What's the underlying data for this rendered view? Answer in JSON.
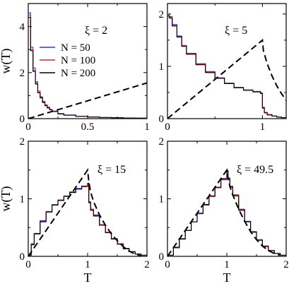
{
  "chart_data": [
    {
      "type": "line",
      "annotation": "ξ = 2",
      "xlabel": "",
      "ylabel": "w(T)",
      "xlim": [
        0,
        1
      ],
      "ylim": [
        0,
        5
      ],
      "xticks": [
        "0",
        "0.5",
        "1"
      ],
      "yticks": [
        "0",
        "2",
        "4"
      ],
      "legend": {
        "position": "middle-left",
        "entries": [
          "N = 50",
          "N = 100",
          "N = 200"
        ]
      },
      "series": [
        {
          "name": "N = 50",
          "style": "histogram",
          "color": "#3333dd",
          "x": [
            0.0,
            0.02,
            0.04,
            0.06,
            0.08,
            0.1,
            0.12,
            0.14,
            0.16,
            0.18,
            0.2,
            0.25,
            0.3,
            0.4,
            0.5,
            0.6,
            0.7,
            0.8,
            0.9,
            1.0
          ],
          "y": [
            4.6,
            3.1,
            2.2,
            1.6,
            1.2,
            0.95,
            0.75,
            0.6,
            0.5,
            0.4,
            0.33,
            0.22,
            0.16,
            0.1,
            0.07,
            0.05,
            0.04,
            0.03,
            0.02,
            0.02
          ]
        },
        {
          "name": "N = 100",
          "style": "histogram",
          "color": "#dd2222",
          "x": [
            0.0,
            0.02,
            0.04,
            0.06,
            0.08,
            0.1,
            0.12,
            0.14,
            0.16,
            0.18,
            0.2,
            0.25,
            0.3,
            0.4,
            0.5,
            0.6,
            0.7,
            0.8,
            0.9,
            1.0
          ],
          "y": [
            4.5,
            3.0,
            2.1,
            1.55,
            1.15,
            0.92,
            0.72,
            0.58,
            0.48,
            0.39,
            0.32,
            0.21,
            0.15,
            0.1,
            0.07,
            0.05,
            0.04,
            0.03,
            0.02,
            0.02
          ]
        },
        {
          "name": "N = 200",
          "style": "histogram",
          "color": "#000000",
          "x": [
            0.0,
            0.02,
            0.04,
            0.06,
            0.08,
            0.1,
            0.12,
            0.14,
            0.16,
            0.18,
            0.2,
            0.25,
            0.3,
            0.4,
            0.5,
            0.6,
            0.7,
            0.8,
            0.9,
            1.0
          ],
          "y": [
            4.4,
            2.95,
            2.05,
            1.5,
            1.12,
            0.9,
            0.7,
            0.56,
            0.46,
            0.38,
            0.31,
            0.2,
            0.15,
            0.1,
            0.07,
            0.05,
            0.04,
            0.03,
            0.02,
            0.02
          ]
        },
        {
          "name": "",
          "style": "dashed",
          "color": "#000000",
          "x": [
            0,
            1
          ],
          "y": [
            0,
            1.55
          ]
        }
      ]
    },
    {
      "type": "line",
      "annotation": "ξ = 5",
      "xlabel": "",
      "ylabel": "",
      "xlim": [
        0,
        1.25
      ],
      "ylim": [
        0,
        2.2
      ],
      "xticks": [
        "0",
        "1"
      ],
      "yticks": [
        "0",
        "1",
        "2"
      ],
      "series": [
        {
          "name": "N = 50",
          "style": "histogram",
          "color": "#3333dd",
          "x": [
            0.0,
            0.02,
            0.05,
            0.1,
            0.15,
            0.2,
            0.3,
            0.4,
            0.5,
            0.6,
            0.7,
            0.8,
            0.9,
            0.98,
            1.0,
            1.02,
            1.05,
            1.1,
            1.15,
            1.2,
            1.25
          ],
          "y": [
            2.0,
            1.95,
            1.8,
            1.58,
            1.4,
            1.25,
            1.05,
            0.9,
            0.78,
            0.68,
            0.6,
            0.55,
            0.52,
            0.49,
            0.22,
            0.12,
            0.08,
            0.05,
            0.03,
            0.02,
            0.02
          ]
        },
        {
          "name": "N = 100",
          "style": "histogram",
          "color": "#dd2222",
          "x": [
            0.0,
            0.02,
            0.05,
            0.1,
            0.15,
            0.2,
            0.3,
            0.4,
            0.5,
            0.6,
            0.7,
            0.8,
            0.9,
            0.98,
            1.0,
            1.02,
            1.05,
            1.1,
            1.15,
            1.2,
            1.25
          ],
          "y": [
            1.98,
            1.93,
            1.78,
            1.57,
            1.39,
            1.24,
            1.04,
            0.89,
            0.77,
            0.67,
            0.6,
            0.55,
            0.52,
            0.49,
            0.21,
            0.12,
            0.08,
            0.05,
            0.03,
            0.02,
            0.02
          ]
        },
        {
          "name": "N = 200",
          "style": "histogram",
          "color": "#000000",
          "x": [
            0.0,
            0.02,
            0.05,
            0.1,
            0.15,
            0.2,
            0.3,
            0.4,
            0.5,
            0.6,
            0.7,
            0.8,
            0.9,
            0.98,
            1.0,
            1.02,
            1.05,
            1.1,
            1.15,
            1.2,
            1.25
          ],
          "y": [
            1.96,
            1.92,
            1.77,
            1.56,
            1.38,
            1.23,
            1.03,
            0.88,
            0.77,
            0.67,
            0.59,
            0.54,
            0.51,
            0.48,
            0.2,
            0.11,
            0.07,
            0.05,
            0.03,
            0.02,
            0.02
          ]
        },
        {
          "name": "",
          "style": "dashed",
          "color": "#000000",
          "x": [
            0,
            1.0,
            1.01,
            1.05,
            1.1,
            1.15,
            1.2,
            1.25
          ],
          "y": [
            0,
            1.5,
            1.3,
            1.05,
            0.82,
            0.63,
            0.48,
            0.35
          ]
        }
      ]
    },
    {
      "type": "line",
      "annotation": "ξ = 15",
      "xlabel": "T",
      "ylabel": "w(T)",
      "xlim": [
        0,
        2
      ],
      "ylim": [
        0,
        2
      ],
      "xticks": [
        "0",
        "1",
        "2"
      ],
      "yticks": [
        "0",
        "1",
        "2"
      ],
      "series": [
        {
          "name": "N = 50",
          "style": "histogram",
          "color": "#3333dd",
          "x": [
            0.0,
            0.05,
            0.1,
            0.2,
            0.3,
            0.4,
            0.5,
            0.6,
            0.7,
            0.8,
            0.9,
            1.0,
            1.02,
            1.05,
            1.1,
            1.2,
            1.3,
            1.4,
            1.5,
            1.6,
            1.7,
            1.8,
            1.9,
            2.0
          ],
          "y": [
            0.02,
            0.22,
            0.4,
            0.62,
            0.78,
            0.9,
            0.98,
            1.05,
            1.12,
            1.18,
            1.22,
            1.25,
            0.95,
            0.82,
            0.72,
            0.55,
            0.42,
            0.31,
            0.22,
            0.14,
            0.08,
            0.04,
            0.02,
            0.0
          ]
        },
        {
          "name": "N = 100",
          "style": "histogram",
          "color": "#dd2222",
          "x": [
            0.0,
            0.05,
            0.1,
            0.2,
            0.3,
            0.4,
            0.5,
            0.6,
            0.7,
            0.8,
            0.9,
            1.0,
            1.02,
            1.05,
            1.1,
            1.2,
            1.3,
            1.4,
            1.5,
            1.6,
            1.7,
            1.8,
            1.9,
            2.0
          ],
          "y": [
            0.02,
            0.21,
            0.39,
            0.61,
            0.77,
            0.89,
            0.98,
            1.05,
            1.11,
            1.17,
            1.21,
            1.26,
            0.94,
            0.81,
            0.71,
            0.55,
            0.42,
            0.31,
            0.22,
            0.14,
            0.08,
            0.04,
            0.02,
            0.0
          ]
        },
        {
          "name": "N = 200",
          "style": "histogram",
          "color": "#000000",
          "x": [
            0.0,
            0.05,
            0.1,
            0.2,
            0.3,
            0.4,
            0.5,
            0.6,
            0.7,
            0.8,
            0.9,
            1.0,
            1.02,
            1.05,
            1.1,
            1.2,
            1.3,
            1.4,
            1.5,
            1.6,
            1.7,
            1.8,
            1.9,
            2.0
          ],
          "y": [
            0.02,
            0.2,
            0.39,
            0.6,
            0.77,
            0.89,
            0.97,
            1.04,
            1.11,
            1.17,
            1.22,
            1.27,
            0.93,
            0.8,
            0.7,
            0.54,
            0.41,
            0.3,
            0.21,
            0.13,
            0.08,
            0.04,
            0.02,
            0.0
          ]
        },
        {
          "name": "",
          "style": "dashed",
          "color": "#000000",
          "x": [
            0,
            1.0,
            1.02,
            1.05,
            1.1,
            1.2,
            1.3,
            1.4,
            1.5,
            1.6,
            1.7,
            1.8,
            1.9
          ],
          "y": [
            0,
            1.5,
            1.3,
            1.12,
            0.95,
            0.72,
            0.54,
            0.39,
            0.27,
            0.17,
            0.09,
            0.04,
            0.01
          ]
        }
      ]
    },
    {
      "type": "line",
      "annotation": "ξ = 49.5",
      "xlabel": "T",
      "ylabel": "",
      "xlim": [
        0,
        2
      ],
      "ylim": [
        0,
        2
      ],
      "xticks": [
        "0",
        "1",
        "2"
      ],
      "yticks": [
        "0",
        "1",
        "2"
      ],
      "series": [
        {
          "name": "N = 50",
          "style": "histogram",
          "color": "#3333dd",
          "x": [
            0.0,
            0.1,
            0.2,
            0.3,
            0.4,
            0.5,
            0.6,
            0.7,
            0.8,
            0.9,
            1.0,
            1.02,
            1.05,
            1.1,
            1.2,
            1.3,
            1.4,
            1.5,
            1.6,
            1.7,
            1.8,
            1.9,
            2.0
          ],
          "y": [
            0.02,
            0.16,
            0.31,
            0.45,
            0.6,
            0.74,
            0.89,
            1.04,
            1.19,
            1.33,
            1.47,
            1.35,
            1.22,
            1.07,
            0.82,
            0.61,
            0.43,
            0.29,
            0.18,
            0.1,
            0.05,
            0.02,
            0.0
          ]
        },
        {
          "name": "N = 100",
          "style": "histogram",
          "color": "#dd2222",
          "x": [
            0.0,
            0.1,
            0.2,
            0.3,
            0.4,
            0.5,
            0.6,
            0.7,
            0.8,
            0.9,
            1.0,
            1.02,
            1.05,
            1.1,
            1.2,
            1.3,
            1.4,
            1.5,
            1.6,
            1.7,
            1.8,
            1.9,
            2.0
          ],
          "y": [
            0.02,
            0.15,
            0.3,
            0.45,
            0.6,
            0.75,
            0.9,
            1.04,
            1.19,
            1.34,
            1.48,
            1.36,
            1.21,
            1.06,
            0.81,
            0.6,
            0.43,
            0.29,
            0.18,
            0.1,
            0.05,
            0.02,
            0.0
          ]
        },
        {
          "name": "N = 200",
          "style": "histogram",
          "color": "#000000",
          "x": [
            0.0,
            0.1,
            0.2,
            0.3,
            0.4,
            0.5,
            0.6,
            0.7,
            0.8,
            0.9,
            1.0,
            1.02,
            1.05,
            1.1,
            1.2,
            1.3,
            1.4,
            1.5,
            1.6,
            1.7,
            1.8,
            1.9,
            2.0
          ],
          "y": [
            0.02,
            0.15,
            0.3,
            0.45,
            0.6,
            0.75,
            0.9,
            1.05,
            1.2,
            1.35,
            1.49,
            1.36,
            1.2,
            1.05,
            0.8,
            0.6,
            0.42,
            0.28,
            0.17,
            0.1,
            0.05,
            0.02,
            0.0
          ]
        },
        {
          "name": "",
          "style": "dashed",
          "color": "#000000",
          "x": [
            0,
            1.0,
            1.02,
            1.05,
            1.1,
            1.2,
            1.3,
            1.4,
            1.5,
            1.6,
            1.7,
            1.8,
            1.9
          ],
          "y": [
            0,
            1.5,
            1.36,
            1.22,
            1.07,
            0.82,
            0.61,
            0.43,
            0.29,
            0.18,
            0.1,
            0.05,
            0.02
          ]
        }
      ]
    }
  ]
}
